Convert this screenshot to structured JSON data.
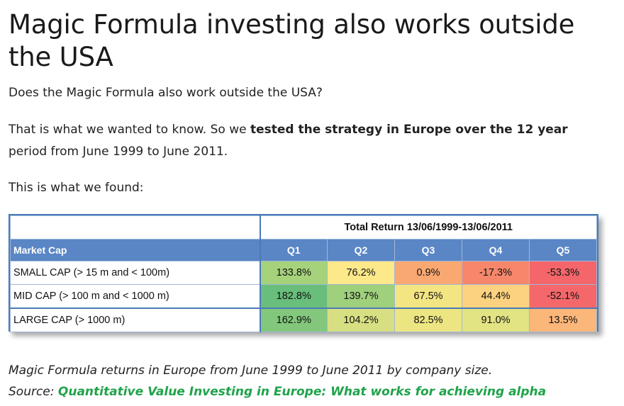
{
  "article": {
    "title": "Magic Formula investing also works outside the USA",
    "p1": "Does the Magic Formula also work outside the USA?",
    "p2_start": "That is what we wanted to know. So we ",
    "p2_bold": "tested the strategy in Europe over the 12 year",
    "p2_end": " period from June 1999 to June 2011.",
    "p3": "This is what we found:"
  },
  "table": {
    "top_header": "Total Return 13/06/1999-13/06/2011",
    "row_header": "Market Cap",
    "columns": [
      "Q1",
      "Q2",
      "Q3",
      "Q4",
      "Q5"
    ],
    "rows": [
      {
        "label": "SMALL CAP  (> 15 m and < 100m)",
        "values": [
          "133.8%",
          "76.2%",
          "0.9%",
          "-17.3%",
          "-53.3%"
        ],
        "colors": [
          "#a6d27c",
          "#fde88a",
          "#f9a872",
          "#f6876b",
          "#f4666a"
        ]
      },
      {
        "label": "MID CAP  (> 100 m and < 1000 m)",
        "values": [
          "182.8%",
          "139.7%",
          "67.5%",
          "44.4%",
          "-52.1%"
        ],
        "colors": [
          "#68be7a",
          "#9fd07c",
          "#f4e583",
          "#fcd17f",
          "#f4686b"
        ]
      },
      {
        "label": " LARGE CAP  (> 1000 m)",
        "values": [
          "162.9%",
          "104.2%",
          "82.5%",
          "91.0%",
          "13.5%"
        ],
        "colors": [
          "#82c77c",
          "#d7df82",
          "#ece582",
          "#e2e383",
          "#fbb679"
        ]
      }
    ]
  },
  "caption": {
    "line1": "Magic Formula returns in Europe from June 1999 to June 2011 by company size.",
    "source_label": "Source: ",
    "source_link": "Quantitative Value Investing in Europe: What works for achieving alpha",
    "link_color": "#1fa34a"
  }
}
